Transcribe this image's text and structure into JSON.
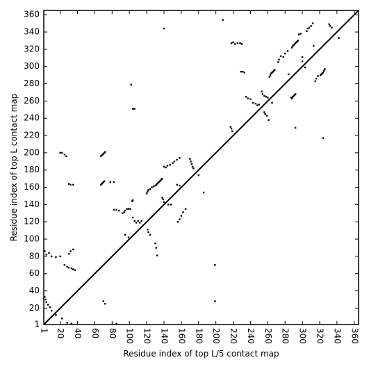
{
  "chart_data": {
    "type": "scatter",
    "title": "",
    "xlabel": "Residue index of top L/5 contact map",
    "ylabel": "Residue index of top L contact map",
    "xlim": [
      1,
      365
    ],
    "ylim": [
      1,
      365
    ],
    "x_ticks": [
      1,
      20,
      40,
      60,
      80,
      100,
      120,
      140,
      160,
      180,
      200,
      220,
      240,
      260,
      280,
      300,
      320,
      340,
      360
    ],
    "y_ticks": [
      1,
      20,
      40,
      60,
      80,
      100,
      120,
      140,
      160,
      180,
      200,
      220,
      240,
      260,
      280,
      300,
      320,
      340,
      360
    ],
    "x_tick_labels": [
      "1",
      "20",
      "40",
      "60",
      "80",
      "100",
      "120",
      "140",
      "160",
      "180",
      "200",
      "220",
      "240",
      "260",
      "280",
      "300",
      "320",
      "340",
      "360"
    ],
    "y_tick_labels": [
      "1",
      "20",
      "40",
      "60",
      "80",
      "100",
      "120",
      "140",
      "160",
      "180",
      "200",
      "220",
      "240",
      "260",
      "280",
      "300",
      "320",
      "340",
      "360"
    ],
    "diagonal": [
      [
        1,
        1
      ],
      [
        365,
        365
      ]
    ],
    "series": [
      {
        "label_upper": "top L",
        "points": [
          [
            20,
            200
          ],
          [
            22,
            200
          ],
          [
            25,
            198
          ],
          [
            27,
            196
          ],
          [
            30,
            164
          ],
          [
            32,
            163
          ],
          [
            35,
            163
          ],
          [
            67,
            196
          ],
          [
            68,
            197
          ],
          [
            69,
            198
          ],
          [
            70,
            199
          ],
          [
            71,
            200
          ],
          [
            72,
            201
          ],
          [
            67,
            163
          ],
          [
            68,
            164
          ],
          [
            69,
            165
          ],
          [
            70,
            166
          ],
          [
            71,
            167
          ],
          [
            78,
            166
          ],
          [
            82,
            166
          ],
          [
            82,
            134
          ],
          [
            85,
            134
          ],
          [
            88,
            133
          ],
          [
            92,
            130
          ],
          [
            94,
            131
          ],
          [
            95,
            133
          ],
          [
            97,
            135
          ],
          [
            99,
            135
          ],
          [
            101,
            135
          ],
          [
            103,
            144
          ],
          [
            104,
            145
          ],
          [
            104,
            125
          ],
          [
            106,
            121
          ],
          [
            108,
            119
          ],
          [
            110,
            121
          ],
          [
            112,
            119
          ],
          [
            114,
            121
          ],
          [
            120,
            153
          ],
          [
            121,
            155
          ],
          [
            122,
            157
          ],
          [
            124,
            158
          ],
          [
            126,
            160
          ],
          [
            128,
            161
          ],
          [
            130,
            162
          ],
          [
            131,
            163
          ],
          [
            132,
            164
          ],
          [
            133,
            165
          ],
          [
            134,
            166
          ],
          [
            135,
            167
          ],
          [
            136,
            168
          ],
          [
            137,
            169
          ],
          [
            138,
            170
          ],
          [
            140,
            184
          ],
          [
            142,
            183
          ],
          [
            144,
            185
          ],
          [
            147,
            186
          ],
          [
            150,
            188
          ],
          [
            152,
            190
          ],
          [
            155,
            192
          ],
          [
            158,
            194
          ],
          [
            121,
            111
          ],
          [
            122,
            108
          ],
          [
            124,
            105
          ],
          [
            130,
            95
          ],
          [
            131,
            90
          ],
          [
            132,
            81
          ],
          [
            138,
            148
          ],
          [
            139,
            146
          ],
          [
            140,
            143
          ],
          [
            145,
            140
          ],
          [
            148,
            140
          ],
          [
            155,
            163
          ],
          [
            158,
            162
          ],
          [
            156,
            120
          ],
          [
            158,
            123
          ],
          [
            160,
            127
          ],
          [
            162,
            131
          ],
          [
            165,
            135
          ],
          [
            170,
            193
          ],
          [
            171,
            190
          ],
          [
            172,
            187
          ],
          [
            173,
            184
          ],
          [
            174,
            182
          ],
          [
            102,
            279
          ],
          [
            104,
            251
          ],
          [
            106,
            251
          ],
          [
            140,
            344
          ],
          [
            2,
            86
          ],
          [
            4,
            82
          ],
          [
            7,
            84
          ],
          [
            10,
            80
          ],
          [
            15,
            79
          ],
          [
            20,
            80
          ],
          [
            25,
            70
          ],
          [
            28,
            68
          ],
          [
            30,
            67
          ],
          [
            33,
            66
          ],
          [
            35,
            65
          ],
          [
            37,
            64
          ],
          [
            30,
            83
          ],
          [
            32,
            86
          ],
          [
            35,
            88
          ],
          [
            2,
            33
          ],
          [
            3,
            30
          ],
          [
            4,
            27
          ],
          [
            6,
            24
          ],
          [
            8,
            21
          ],
          [
            10,
            17
          ],
          [
            15,
            12
          ],
          [
            22,
            8
          ],
          [
            28,
            3
          ],
          [
            33,
            2
          ],
          [
            70,
            28
          ],
          [
            72,
            25
          ],
          [
            85,
            2
          ],
          [
            95,
            105
          ],
          [
            99,
            102
          ],
          [
            180,
            174
          ],
          [
            186,
            154
          ],
          [
            199,
            70
          ],
          [
            199,
            28
          ],
          [
            208,
            354
          ],
          [
            218,
            327
          ],
          [
            220,
            328
          ],
          [
            222,
            326
          ],
          [
            225,
            327
          ],
          [
            228,
            327
          ],
          [
            230,
            326
          ],
          [
            217,
            230
          ],
          [
            218,
            228
          ],
          [
            219,
            225
          ],
          [
            229,
            294
          ],
          [
            231,
            294
          ],
          [
            233,
            293
          ],
          [
            235,
            265
          ],
          [
            237,
            263
          ],
          [
            240,
            262
          ],
          [
            243,
            258
          ],
          [
            246,
            257
          ],
          [
            248,
            255
          ],
          [
            250,
            256
          ],
          [
            253,
            271
          ],
          [
            254,
            268
          ],
          [
            256,
            266
          ],
          [
            258,
            265
          ],
          [
            260,
            264
          ],
          [
            256,
            247
          ],
          [
            257,
            245
          ],
          [
            259,
            243
          ],
          [
            261,
            238
          ],
          [
            262,
            288
          ],
          [
            263,
            290
          ],
          [
            264,
            292
          ],
          [
            265,
            293
          ],
          [
            266,
            294
          ],
          [
            267,
            295
          ],
          [
            268,
            296
          ],
          [
            265,
            258
          ],
          [
            272,
            305
          ],
          [
            273,
            308
          ],
          [
            275,
            312
          ],
          [
            278,
            311
          ],
          [
            280,
            315
          ],
          [
            283,
            318
          ],
          [
            284,
            291
          ],
          [
            287,
            264
          ],
          [
            288,
            263
          ],
          [
            289,
            265
          ],
          [
            290,
            266
          ],
          [
            291,
            267
          ],
          [
            292,
            268
          ],
          [
            288,
            322
          ],
          [
            289,
            324
          ],
          [
            290,
            325
          ],
          [
            291,
            326
          ],
          [
            292,
            327
          ],
          [
            293,
            328
          ],
          [
            294,
            329
          ],
          [
            295,
            330
          ],
          [
            292,
            229
          ],
          [
            296,
            337
          ],
          [
            298,
            338
          ],
          [
            300,
            306
          ],
          [
            300,
            311
          ],
          [
            303,
            299
          ],
          [
            305,
            341
          ],
          [
            306,
            344
          ],
          [
            308,
            345
          ],
          [
            310,
            347
          ],
          [
            312,
            350
          ],
          [
            313,
            324
          ],
          [
            315,
            283
          ],
          [
            316,
            286
          ],
          [
            318,
            289
          ],
          [
            321,
            290
          ],
          [
            322,
            291
          ],
          [
            323,
            292
          ],
          [
            324,
            293
          ],
          [
            325,
            295
          ],
          [
            326,
            297
          ],
          [
            324,
            217
          ],
          [
            331,
            349
          ],
          [
            332,
            347
          ],
          [
            334,
            345
          ],
          [
            342,
            333
          ]
        ]
      }
    ]
  }
}
